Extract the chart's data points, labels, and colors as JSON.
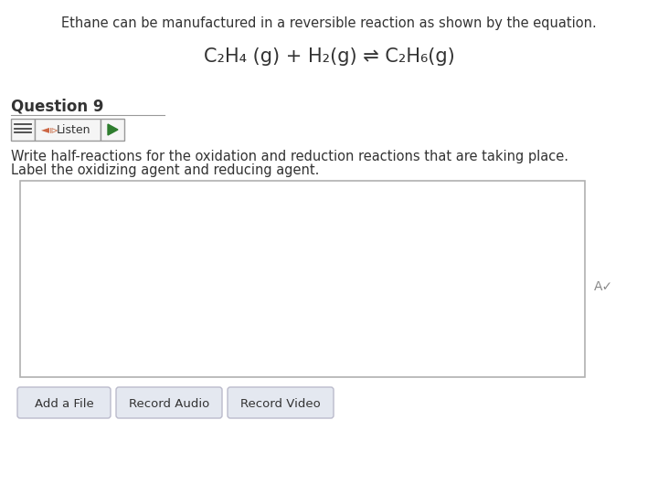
{
  "background_color": "#ffffff",
  "header_text": "Ethane can be manufactured in a reversible reaction as shown by the equation.",
  "equation": "C₂H₄ (g) + H₂(g) ⇌ C₂H₆(g)",
  "question_label": "Question 9",
  "button_listen_text": "Listen",
  "instruction_line1": "Write half-reactions for the oxidation and reduction reactions that are taking place.",
  "instruction_line2": "Label the oxidizing agent and reducing agent.",
  "button_labels": [
    "Add a File",
    "Record Audio",
    "Record Video"
  ],
  "text_box_border_color": "#b0b0b0",
  "text_color": "#333333",
  "button_bg_color": "#e4e8f0",
  "button_border_color": "#cccccc",
  "header_font_size": 10.5,
  "equation_font_size": 15,
  "question_font_size": 12,
  "instruction_font_size": 10.5,
  "button_font_size": 9.5,
  "resize_symbol": "A✓",
  "listen_icon": "◄⧐",
  "play_color": "#2e7d2e",
  "icon_color": "#555555",
  "underline_color": "#999999"
}
